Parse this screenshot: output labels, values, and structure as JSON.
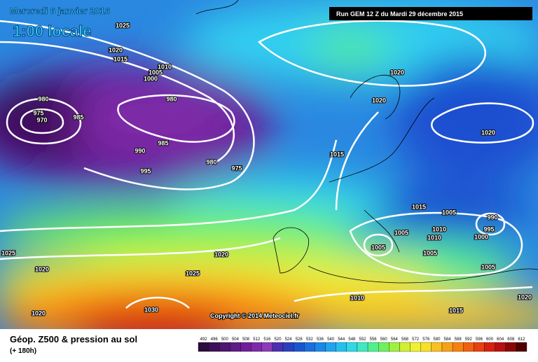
{
  "header": {
    "date": "Mercredi 6 janvier 2016",
    "time": "1:00 locale",
    "run": "Run GEM 12 Z du Mardi 29 décembre 2015"
  },
  "copyright": "Copyright © 2014 Meteociel.fr",
  "footer": {
    "title": "Géop. Z500 & pression au sol",
    "lead": "(+ 180h)"
  },
  "isobar_labels": [
    1025,
    1020,
    1015,
    1010,
    1005,
    1000,
    980,
    975,
    970,
    985,
    980,
    985,
    990,
    995,
    980,
    975,
    1020,
    1020,
    1020,
    1015,
    1015,
    1005,
    990,
    995,
    1000,
    1005,
    1010,
    1010,
    1005,
    1005,
    1025,
    1020,
    1020,
    1025,
    1005,
    1030,
    1020,
    1010,
    1015,
    1020
  ],
  "legend": {
    "labels": [
      492,
      496,
      500,
      504,
      508,
      512,
      516,
      520,
      524,
      528,
      532,
      536,
      540,
      544,
      548,
      552,
      556,
      560,
      564,
      568,
      572,
      576,
      580,
      584,
      588,
      592,
      596,
      600,
      604,
      608,
      612
    ],
    "colors": [
      "#2b0a3d",
      "#3d0f5a",
      "#4e1470",
      "#5f1a87",
      "#701f9a",
      "#7e2aa8",
      "#8b3ab8",
      "#4b2fb0",
      "#2a3fc0",
      "#1a55d0",
      "#1a6ee0",
      "#1a88ea",
      "#1fa4ef",
      "#25c0f0",
      "#30d8e8",
      "#40e8c0",
      "#50f090",
      "#70f060",
      "#a0f040",
      "#d0f030",
      "#f0f030",
      "#f8e028",
      "#f8c020",
      "#f8a018",
      "#f88010",
      "#f06010",
      "#e84010",
      "#d82010",
      "#b81010",
      "#880808",
      "#500000"
    ]
  }
}
